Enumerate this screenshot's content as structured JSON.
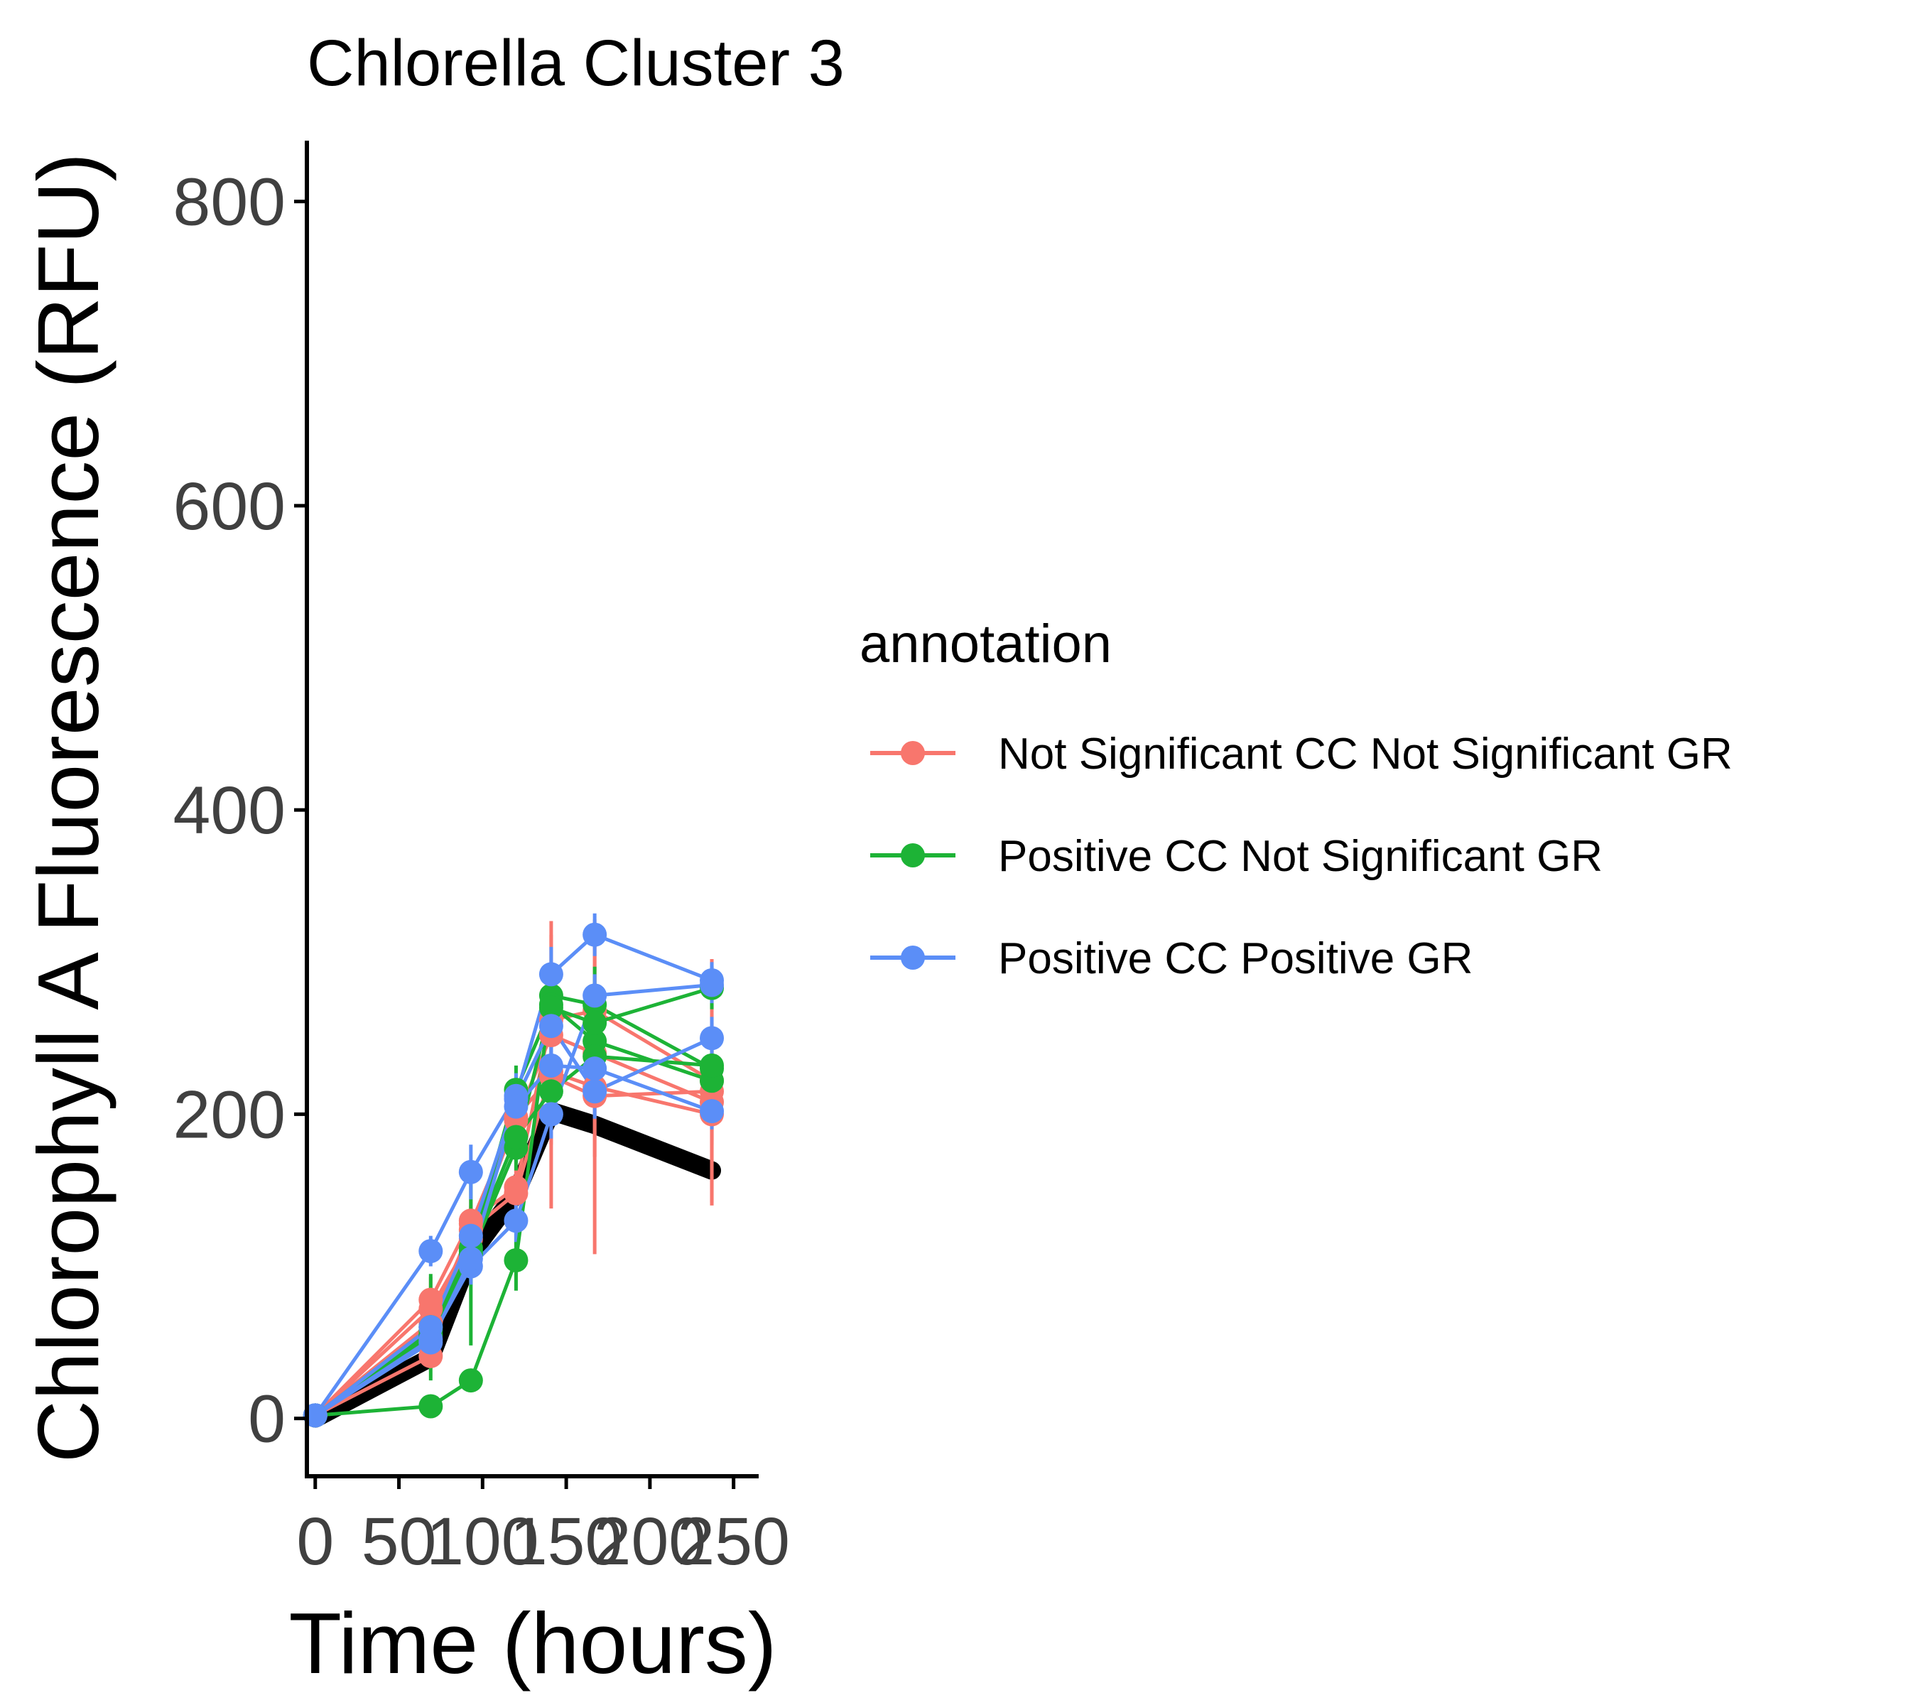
{
  "chart_data": {
    "type": "line",
    "title": "Chlorella Cluster 3",
    "xlabel": "Time (hours)",
    "ylabel": "Chlorophyll A Fluorescence (RFU)",
    "xlim": [
      -5,
      265
    ],
    "ylim": [
      -38,
      840
    ],
    "xticks": [
      0,
      50,
      100,
      150,
      200,
      250
    ],
    "yticks": [
      0,
      200,
      400,
      600,
      800
    ],
    "grid": false,
    "legend": {
      "title": "annotation",
      "position": "right",
      "entries": [
        {
          "label": "Not Significant CC Not Significant GR",
          "color": "#F8766D"
        },
        {
          "label": "Positive CC Not Significant GR",
          "color": "#1DB336"
        },
        {
          "label": "Positive CC Positive GR",
          "color": "#5B8EF7"
        }
      ]
    },
    "x": [
      0,
      69,
      93,
      120,
      141,
      167,
      237
    ],
    "reference": {
      "color": "#000000",
      "values": [
        0,
        40,
        108,
        148,
        202,
        193,
        163
      ]
    },
    "series": [
      {
        "group": 0,
        "values": [
          2,
          78,
          130,
          152,
          262,
          268,
          222
        ],
        "err": [
          0,
          15,
          14,
          22,
          65,
          48,
          80
        ]
      },
      {
        "group": 0,
        "values": [
          2,
          63,
          124,
          148,
          228,
          218,
          200
        ],
        "err": [
          0,
          10,
          12,
          18,
          90,
          110,
          60
        ]
      },
      {
        "group": 0,
        "values": [
          2,
          41,
          128,
          198,
          225,
          212,
          215
        ],
        "err": [
          0,
          8,
          12,
          15,
          45,
          40,
          35
        ]
      },
      {
        "group": 0,
        "values": [
          2,
          72,
          118,
          196,
          252,
          240,
          208
        ],
        "err": [
          0,
          10,
          10,
          14,
          30,
          35,
          25
        ]
      },
      {
        "group": 1,
        "values": [
          2,
          8,
          25,
          104,
          278,
          272,
          230
        ],
        "err": [
          0,
          4,
          6,
          20,
          20,
          25,
          18
        ]
      },
      {
        "group": 1,
        "values": [
          2,
          60,
          108,
          178,
          272,
          248,
          222
        ],
        "err": [
          0,
          35,
          60,
          15,
          20,
          18,
          16
        ]
      },
      {
        "group": 1,
        "values": [
          2,
          55,
          110,
          216,
          270,
          260,
          283
        ],
        "err": [
          0,
          20,
          22,
          16,
          18,
          20,
          14
        ]
      },
      {
        "group": 1,
        "values": [
          2,
          58,
          112,
          185,
          215,
          238,
          232
        ],
        "err": [
          0,
          15,
          18,
          14,
          16,
          18,
          15
        ]
      },
      {
        "group": 2,
        "values": [
          2,
          110,
          162,
          212,
          292,
          318,
          288
        ],
        "err": [
          0,
          10,
          18,
          15,
          18,
          14,
          12
        ]
      },
      {
        "group": 2,
        "values": [
          2,
          52,
          100,
          130,
          200,
          278,
          285
        ],
        "err": [
          0,
          10,
          12,
          14,
          16,
          14,
          12
        ]
      },
      {
        "group": 2,
        "values": [
          2,
          60,
          120,
          210,
          258,
          215,
          250
        ],
        "err": [
          0,
          10,
          12,
          14,
          30,
          18,
          14
        ]
      },
      {
        "group": 2,
        "values": [
          2,
          50,
          105,
          205,
          232,
          230,
          202
        ],
        "err": [
          0,
          8,
          10,
          12,
          20,
          15,
          12
        ]
      }
    ]
  }
}
